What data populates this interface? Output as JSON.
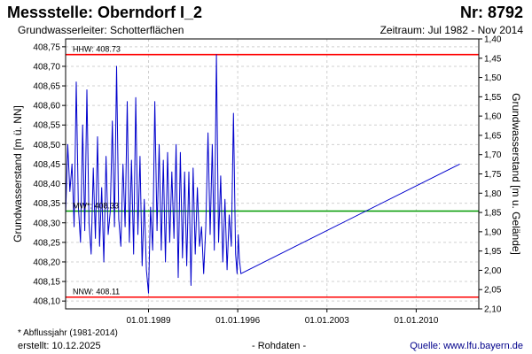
{
  "header": {
    "title": "Messstelle: Oberndorf I_2",
    "number": "Nr: 8792",
    "aquifer": "Grundwasserleiter:   Schotterflächen",
    "period": "Zeitraum: Jul 1982 - Nov 2014"
  },
  "footer": {
    "note": "* Abflussjahr (1981-2014)",
    "created": "erstellt:  10.12.2025",
    "raw": "- Rohdaten -",
    "source": "Quelle: www.lfu.bayern.de"
  },
  "colors": {
    "series": "#0000cc",
    "hhw": "#ff0000",
    "nnw": "#ff0000",
    "mw": "#009900",
    "grid": "#d0d0d0"
  },
  "chart_data": {
    "type": "line",
    "xlabel": "",
    "ylabel": "Grundwasserstand [m ü. NN]",
    "ylabel_right": "Grundwasserstand [m u. Gelände]",
    "xlim": [
      "1982-07-01",
      "2014-11-30"
    ],
    "ylim": [
      408.08,
      408.77
    ],
    "y2lim": [
      2.1,
      1.4
    ],
    "y2_offset": 410.18,
    "x_ticks": [
      "01.01.1989",
      "01.01.1996",
      "01.01.2003",
      "01.01.2010"
    ],
    "y_ticks": [
      "408,10",
      "408,15",
      "408,20",
      "408,25",
      "408,30",
      "408,35",
      "408,40",
      "408,45",
      "408,50",
      "408,55",
      "408,60",
      "408,65",
      "408,70",
      "408,75"
    ],
    "y2_ticks": [
      "2,10",
      "2,05",
      "2,00",
      "1,95",
      "1,90",
      "1,85",
      "1,80",
      "1,75",
      "1,70",
      "1,65",
      "1,60",
      "1,55",
      "1,50",
      "1,45",
      "1,40"
    ],
    "reference_lines": [
      {
        "key": "hhw",
        "label": "HHW: 408.73",
        "value": 408.73
      },
      {
        "key": "mw",
        "label": "MW*: 408.33",
        "value": 408.33
      },
      {
        "key": "nnw",
        "label": "NNW: 408.11",
        "value": 408.11
      }
    ],
    "series": [
      {
        "name": "",
        "points": [
          [
            "1982-07-01",
            408.32
          ],
          [
            "1982-09-01",
            408.5
          ],
          [
            "1982-11-01",
            408.38
          ],
          [
            "1983-01-01",
            408.45
          ],
          [
            "1983-03-01",
            408.29
          ],
          [
            "1983-05-01",
            408.66
          ],
          [
            "1983-07-01",
            408.34
          ],
          [
            "1983-09-01",
            408.25
          ],
          [
            "1983-11-01",
            408.55
          ],
          [
            "1984-01-01",
            408.28
          ],
          [
            "1984-03-01",
            408.64
          ],
          [
            "1984-05-01",
            408.3
          ],
          [
            "1984-07-01",
            408.22
          ],
          [
            "1984-09-01",
            408.44
          ],
          [
            "1984-11-01",
            408.26
          ],
          [
            "1985-01-01",
            408.52
          ],
          [
            "1985-03-01",
            408.24
          ],
          [
            "1985-05-01",
            408.39
          ],
          [
            "1985-07-01",
            408.2
          ],
          [
            "1985-09-01",
            408.47
          ],
          [
            "1985-11-01",
            408.27
          ],
          [
            "1986-01-01",
            408.33
          ],
          [
            "1986-03-01",
            408.56
          ],
          [
            "1986-05-01",
            408.29
          ],
          [
            "1986-07-01",
            408.7
          ],
          [
            "1986-09-01",
            408.31
          ],
          [
            "1986-11-01",
            408.24
          ],
          [
            "1987-01-01",
            408.45
          ],
          [
            "1987-03-01",
            408.29
          ],
          [
            "1987-05-01",
            408.61
          ],
          [
            "1987-07-01",
            408.25
          ],
          [
            "1987-09-01",
            408.46
          ],
          [
            "1987-11-01",
            408.22
          ],
          [
            "1988-01-01",
            408.62
          ],
          [
            "1988-03-01",
            408.27
          ],
          [
            "1988-05-01",
            408.47
          ],
          [
            "1988-07-01",
            408.19
          ],
          [
            "1988-09-01",
            408.36
          ],
          [
            "1988-11-01",
            408.18
          ],
          [
            "1989-01-01",
            408.12
          ],
          [
            "1989-03-01",
            408.34
          ],
          [
            "1989-05-01",
            408.23
          ],
          [
            "1989-07-01",
            408.61
          ],
          [
            "1989-09-01",
            408.28
          ],
          [
            "1989-11-01",
            408.5
          ],
          [
            "1990-01-01",
            408.23
          ],
          [
            "1990-03-01",
            408.46
          ],
          [
            "1990-05-01",
            408.2
          ],
          [
            "1990-07-01",
            408.48
          ],
          [
            "1990-09-01",
            408.25
          ],
          [
            "1990-11-01",
            408.43
          ],
          [
            "1991-01-01",
            408.26
          ],
          [
            "1991-03-01",
            408.5
          ],
          [
            "1991-05-01",
            408.16
          ],
          [
            "1991-07-01",
            408.48
          ],
          [
            "1991-09-01",
            408.21
          ],
          [
            "1991-11-01",
            408.43
          ],
          [
            "1992-01-01",
            408.19
          ],
          [
            "1992-03-01",
            408.43
          ],
          [
            "1992-05-01",
            408.14
          ],
          [
            "1992-07-01",
            408.44
          ],
          [
            "1992-09-01",
            408.22
          ],
          [
            "1992-11-01",
            408.39
          ],
          [
            "1993-01-01",
            408.24
          ],
          [
            "1993-03-01",
            408.29
          ],
          [
            "1993-05-01",
            408.17
          ],
          [
            "1993-07-01",
            408.29
          ],
          [
            "1993-09-01",
            408.53
          ],
          [
            "1993-11-01",
            408.27
          ],
          [
            "1994-01-01",
            408.5
          ],
          [
            "1994-03-01",
            408.23
          ],
          [
            "1994-05-01",
            408.73
          ],
          [
            "1994-07-01",
            408.25
          ],
          [
            "1994-09-01",
            408.42
          ],
          [
            "1994-11-01",
            408.2
          ],
          [
            "1995-01-01",
            408.36
          ],
          [
            "1995-03-01",
            408.18
          ],
          [
            "1995-05-01",
            408.32
          ],
          [
            "1995-07-01",
            408.24
          ],
          [
            "1995-09-01",
            408.58
          ],
          [
            "1995-11-01",
            408.22
          ],
          [
            "1995-12-15",
            408.17
          ],
          [
            "1996-01-15",
            408.27
          ],
          [
            "1996-02-15",
            408.21
          ],
          [
            "1996-04-01",
            408.17
          ],
          [
            "2013-06-01",
            408.45
          ]
        ]
      }
    ]
  }
}
